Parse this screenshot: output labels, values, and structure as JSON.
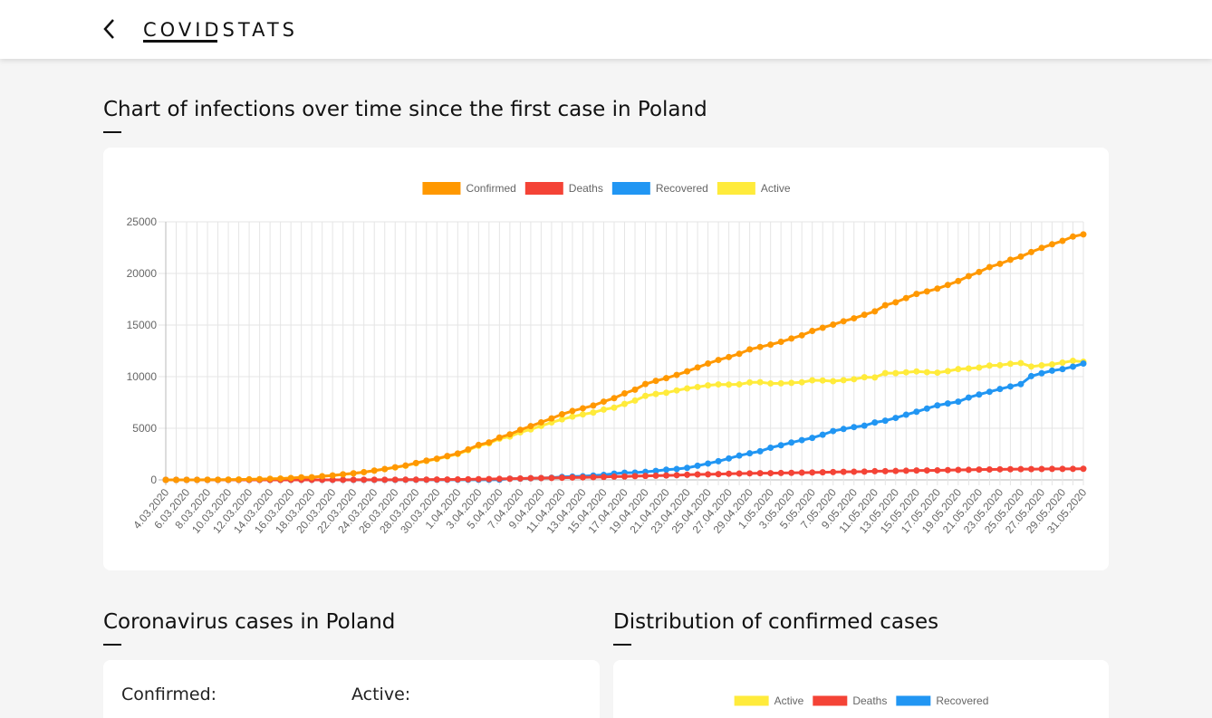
{
  "header": {
    "title": "COVIDSTATS"
  },
  "chart_section": {
    "title": "Chart of infections over time since the first case in Poland"
  },
  "chart_data": {
    "type": "line",
    "categories": [
      "4.03.2020",
      null,
      "6.03.2020",
      null,
      "8.03.2020",
      null,
      "10.03.2020",
      null,
      "12.03.2020",
      null,
      "14.03.2020",
      null,
      "16.03.2020",
      null,
      "18.03.2020",
      null,
      "20.03.2020",
      null,
      "22.03.2020",
      null,
      "24.03.2020",
      null,
      "26.03.2020",
      null,
      "28.03.2020",
      null,
      "30.03.2020",
      null,
      "1.04.2020",
      null,
      "3.04.2020",
      null,
      "5.04.2020",
      null,
      "7.04.2020",
      null,
      "9.04.2020",
      null,
      "11.04.2020",
      null,
      "13.04.2020",
      null,
      "15.04.2020",
      null,
      "17.04.2020",
      null,
      "19.04.2020",
      null,
      "21.04.2020",
      null,
      "23.04.2020",
      null,
      "25.04.2020",
      null,
      "27.04.2020",
      null,
      "29.04.2020",
      null,
      "1.05.2020",
      null,
      "3.05.2020",
      null,
      "5.05.2020",
      null,
      "7.05.2020",
      null,
      "9.05.2020",
      null,
      "11.05.2020",
      null,
      "13.05.2020",
      null,
      "15.05.2020",
      null,
      "17.05.2020",
      null,
      "19.05.2020",
      null,
      "21.05.2020",
      null,
      "23.05.2020",
      null,
      "25.05.2020",
      null,
      "27.05.2020",
      null,
      "29.05.2020",
      null,
      "31.05.2020"
    ],
    "series": [
      {
        "name": "Confirmed",
        "color": "#ff9800",
        "values": [
          1,
          1,
          5,
          5,
          11,
          16,
          22,
          31,
          51,
          68,
          104,
          125,
          177,
          238,
          251,
          355,
          425,
          536,
          634,
          749,
          901,
          1051,
          1221,
          1389,
          1638,
          1862,
          2055,
          2311,
          2554,
          2946,
          3383,
          3627,
          4102,
          4413,
          4848,
          5205,
          5575,
          5955,
          6356,
          6674,
          6934,
          7202,
          7582,
          7918,
          8379,
          8742,
          9287,
          9593,
          9856,
          10169,
          10511,
          10892,
          11273,
          11617,
          11902,
          12218,
          12640,
          12877,
          13105,
          13375,
          13693,
          14006,
          14431,
          14740,
          15047,
          15366,
          15651,
          15996,
          16326,
          16921,
          17204,
          17615,
          18016,
          18257,
          18529,
          18885,
          19268,
          19739,
          20143,
          20619,
          20931,
          21326,
          21631,
          22074,
          22473,
          22825,
          23155,
          23571,
          23786
        ]
      },
      {
        "name": "Deaths",
        "color": "#f44336",
        "values": [
          0,
          0,
          0,
          0,
          0,
          0,
          0,
          0,
          1,
          2,
          3,
          3,
          5,
          5,
          5,
          5,
          5,
          5,
          7,
          8,
          10,
          14,
          16,
          17,
          18,
          22,
          31,
          33,
          43,
          57,
          71,
          79,
          94,
          107,
          129,
          159,
          174,
          181,
          208,
          232,
          245,
          263,
          286,
          314,
          332,
          360,
          380,
          401,
          426,
          454,
          494,
          524,
          535,
          562,
          596,
          616,
          629,
          644,
          651,
          664,
          678,
          698,
          716,
          733,
          755,
          776,
          785,
          800,
          839,
          843,
          861,
          883,
          907,
          915,
          925,
          948,
          962,
          972,
          996,
          1007,
          1024,
          1028,
          1038,
          1043,
          1051,
          1061,
          1064,
          1068,
          1074
        ]
      },
      {
        "name": "Recovered",
        "color": "#2196f3",
        "values": [
          0,
          0,
          0,
          0,
          0,
          0,
          0,
          0,
          0,
          0,
          0,
          0,
          0,
          0,
          0,
          0,
          0,
          0,
          0,
          0,
          0,
          1,
          1,
          7,
          7,
          7,
          7,
          7,
          7,
          13,
          14,
          14,
          20,
          112,
          116,
          155,
          175,
          207,
          287,
          318,
          347,
          416,
          486,
          606,
          689,
          700,
          774,
          867,
          990,
          1048,
          1160,
          1372,
          1584,
          1807,
          2076,
          2352,
          2572,
          2772,
          3117,
          3357,
          3616,
          3852,
          4066,
          4376,
          4731,
          4929,
          5113,
          5248,
          5561,
          5734,
          6003,
          6311,
          6601,
          6909,
          7216,
          7402,
          7575,
          7975,
          8269,
          8536,
          8800,
          9050,
          9275,
          10051,
          10330,
          10580,
          10730,
          10970,
          11270
        ]
      },
      {
        "name": "Active",
        "color": "#ffeb3b",
        "values": [
          1,
          1,
          5,
          5,
          11,
          16,
          22,
          31,
          50,
          66,
          101,
          122,
          172,
          233,
          246,
          350,
          420,
          531,
          627,
          741,
          891,
          1036,
          1204,
          1365,
          1613,
          1833,
          2017,
          2271,
          2504,
          2876,
          3298,
          3534,
          3988,
          4194,
          4603,
          4891,
          5226,
          5567,
          5861,
          6124,
          6342,
          6523,
          6810,
          6998,
          7358,
          7682,
          8133,
          8325,
          8440,
          8667,
          8857,
          8996,
          9154,
          9248,
          9230,
          9250,
          9439,
          9461,
          9337,
          9354,
          9399,
          9456,
          9649,
          9631,
          9561,
          9661,
          9753,
          9948,
          9926,
          10344,
          10340,
          10421,
          10508,
          10433,
          10388,
          10535,
          10731,
          10792,
          10878,
          11076,
          11107,
          11248,
          11318,
          10980,
          11092,
          11184,
          11361,
          11533,
          11442
        ]
      }
    ],
    "ylim": [
      0,
      25000
    ],
    "yticks": [
      0,
      5000,
      10000,
      15000,
      20000,
      25000
    ],
    "grid": true,
    "legend": "top"
  },
  "cases_section": {
    "title": "Coronavirus cases in Poland",
    "labels": [
      "Confirmed:",
      "Active:"
    ]
  },
  "distribution_section": {
    "title": "Distribution of confirmed cases",
    "legend": [
      {
        "name": "Active",
        "color": "#ffeb3b"
      },
      {
        "name": "Deaths",
        "color": "#f44336"
      },
      {
        "name": "Recovered",
        "color": "#2196f3"
      }
    ]
  }
}
